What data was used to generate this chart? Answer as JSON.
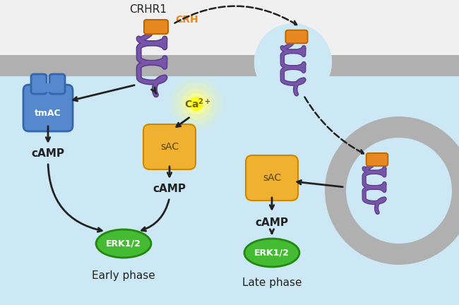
{
  "bg_color": "#cce8f4",
  "bg_above": "#f0f0f0",
  "membrane_color": "#b0b0b0",
  "receptor_color": "#7755aa",
  "receptor_outline": "#5a3d88",
  "crh_color": "#e88820",
  "tmac_color": "#5588cc",
  "tmac_dark": "#3366aa",
  "sac_color": "#f0b030",
  "sac_outline": "#cc8800",
  "ca_color": "#ffee44",
  "erk_color": "#44bb33",
  "erk_outline": "#228811",
  "arrow_color": "#222222",
  "text_color": "#222222",
  "title": "CRHR1",
  "crh_label": "CRH",
  "tmac_label": "tmAC",
  "sac_label": "sAC",
  "camp_label": "cAMP",
  "erk_label": "ERK1/2",
  "early_label": "Early phase",
  "late_label": "Late phase",
  "endosome_outer": "#b0b0b0",
  "endosome_inner": "#cce8f4"
}
